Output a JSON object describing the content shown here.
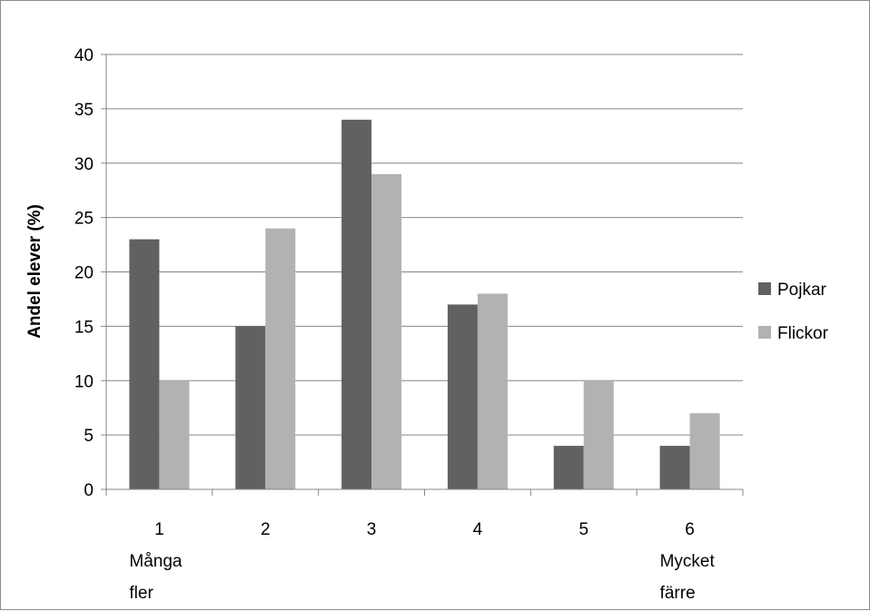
{
  "chart_data": {
    "type": "bar",
    "categories": [
      "1",
      "2",
      "3",
      "4",
      "5",
      "6"
    ],
    "category_sublabels": [
      {
        "index": 0,
        "lines": [
          "Många",
          "fler"
        ]
      },
      {
        "index": 5,
        "lines": [
          "Mycket",
          "färre"
        ]
      }
    ],
    "series": [
      {
        "name": "Pojkar",
        "values": [
          23,
          15,
          34,
          17,
          4,
          4
        ],
        "color": "#616161"
      },
      {
        "name": "Flickor",
        "values": [
          10,
          24,
          29,
          18,
          10,
          7
        ],
        "color": "#b2b2b2"
      }
    ],
    "ylabel": "Andel elever (%)",
    "ylim": [
      0,
      40
    ],
    "yticks": [
      "0",
      "5",
      "10",
      "15",
      "20",
      "25",
      "30",
      "35",
      "40"
    ],
    "grid": true,
    "legend_position": "right"
  }
}
